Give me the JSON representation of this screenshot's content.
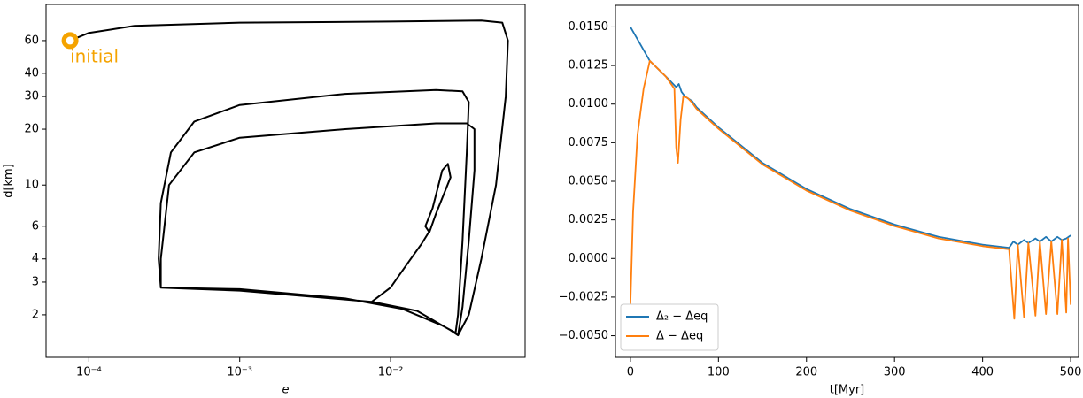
{
  "chart_data": [
    {
      "type": "line",
      "xlabel": "e",
      "ylabel": "d[km]",
      "xlog": true,
      "ylog": true,
      "grid": false,
      "xlim": [
        5.2e-05,
        0.078
      ],
      "ylim": [
        1.18,
        94
      ],
      "xticks": [
        {
          "value": 0.0001,
          "label": "10⁻⁴"
        },
        {
          "value": 0.001,
          "label": "10⁻³"
        },
        {
          "value": 0.01,
          "label": "10⁻²"
        }
      ],
      "yticks": [
        2,
        3,
        4,
        6,
        10,
        20,
        30,
        40,
        60
      ],
      "series": [
        {
          "color": "#000000",
          "x": [
            7.5e-05,
            0.0001,
            0.0002,
            0.001,
            0.01,
            0.04,
            0.055,
            0.06,
            0.058,
            0.05,
            0.04,
            0.033,
            0.028,
            0.025,
            0.015,
            0.0075,
            0.001,
            0.0003,
            0.00029,
            0.0003,
            0.00035,
            0.0005,
            0.001,
            0.005,
            0.02,
            0.03,
            0.033,
            0.032,
            0.03,
            0.028,
            0.027,
            0.022,
            0.012,
            0.005,
            0.001,
            0.0003,
            0.0003,
            0.00034,
            0.0005,
            0.001,
            0.005,
            0.02,
            0.032,
            0.036,
            0.036,
            0.033,
            0.03,
            0.028,
            0.025,
            0.015,
            0.0075,
            0.01,
            0.013,
            0.016,
            0.018,
            0.017,
            0.019,
            0.022,
            0.024,
            0.025,
            0.02,
            0.018
          ],
          "values": [
            60,
            66,
            72,
            75,
            76,
            77,
            75,
            60,
            30,
            10,
            4,
            2,
            1.55,
            1.65,
            2.1,
            2.35,
            2.7,
            2.8,
            4,
            8,
            15,
            22,
            27,
            31,
            32.5,
            32,
            28,
            15,
            5,
            2,
            1.6,
            1.75,
            2.15,
            2.45,
            2.75,
            2.8,
            4,
            10,
            15,
            18,
            20,
            21.5,
            21.5,
            20,
            12,
            5,
            2.2,
            1.55,
            1.65,
            2.1,
            2.35,
            2.8,
            3.8,
            4.8,
            5.6,
            6,
            7.5,
            12,
            13,
            11,
            7,
            5.5
          ]
        }
      ],
      "annotations": [
        {
          "text": "initial",
          "x": 7.5e-05,
          "y": 60,
          "color": "#f5a300"
        }
      ]
    },
    {
      "type": "line",
      "xlabel": "t[Myr]",
      "xlog": false,
      "ylog": false,
      "grid": false,
      "legend": "lower left",
      "xlim": [
        -17,
        509
      ],
      "ylim": [
        -0.0064,
        0.0164
      ],
      "xticks": [
        0,
        100,
        200,
        300,
        400,
        500
      ],
      "yticks": [
        {
          "value": -0.005,
          "label": "−0.0050"
        },
        {
          "value": -0.0025,
          "label": "−0.0025"
        },
        {
          "value": 0,
          "label": "0.0000"
        },
        {
          "value": 0.0025,
          "label": "0.0025"
        },
        {
          "value": 0.005,
          "label": "0.0050"
        },
        {
          "value": 0.0075,
          "label": "0.0075"
        },
        {
          "value": 0.01,
          "label": "0.0100"
        },
        {
          "value": 0.0125,
          "label": "0.0125"
        },
        {
          "value": 0.015,
          "label": "0.0150"
        }
      ],
      "series": [
        {
          "name": "Δ₂ − Δeq",
          "color": "#1f77b4",
          "x": [
            0,
            22,
            40,
            52,
            55,
            58,
            62,
            70,
            75,
            100,
            150,
            200,
            250,
            300,
            350,
            400,
            430,
            435,
            440,
            447,
            452,
            460,
            465,
            472,
            478,
            485,
            490,
            495,
            500
          ],
          "values": [
            0.015,
            0.0128,
            0.0118,
            0.0111,
            0.0113,
            0.0108,
            0.0105,
            0.0102,
            0.0098,
            0.0085,
            0.0062,
            0.0045,
            0.0032,
            0.0022,
            0.0014,
            0.0009,
            0.0007,
            0.0011,
            0.0009,
            0.0012,
            0.001,
            0.0013,
            0.0011,
            0.0014,
            0.0011,
            0.0014,
            0.0012,
            0.0013,
            0.0015
          ]
        },
        {
          "name": "Δ − Δeq",
          "color": "#ff7f0e",
          "x": [
            0,
            3,
            8,
            15,
            22,
            40,
            50,
            52,
            54,
            57,
            60,
            65,
            70,
            75,
            100,
            150,
            200,
            250,
            300,
            350,
            400,
            430,
            436,
            440,
            447,
            452,
            460,
            465,
            472,
            478,
            485,
            490,
            495,
            497,
            500
          ],
          "values": [
            -0.003,
            0.003,
            0.008,
            0.011,
            0.0128,
            0.0118,
            0.011,
            0.0072,
            0.0062,
            0.009,
            0.0105,
            0.0104,
            0.0101,
            0.0097,
            0.0084,
            0.0061,
            0.0044,
            0.0031,
            0.0021,
            0.0013,
            0.0008,
            0.0006,
            -0.0039,
            0.0009,
            -0.0038,
            0.001,
            -0.0037,
            0.0011,
            -0.0036,
            0.0011,
            -0.0036,
            0.0012,
            -0.0035,
            0.0013,
            -0.003
          ]
        }
      ]
    }
  ]
}
